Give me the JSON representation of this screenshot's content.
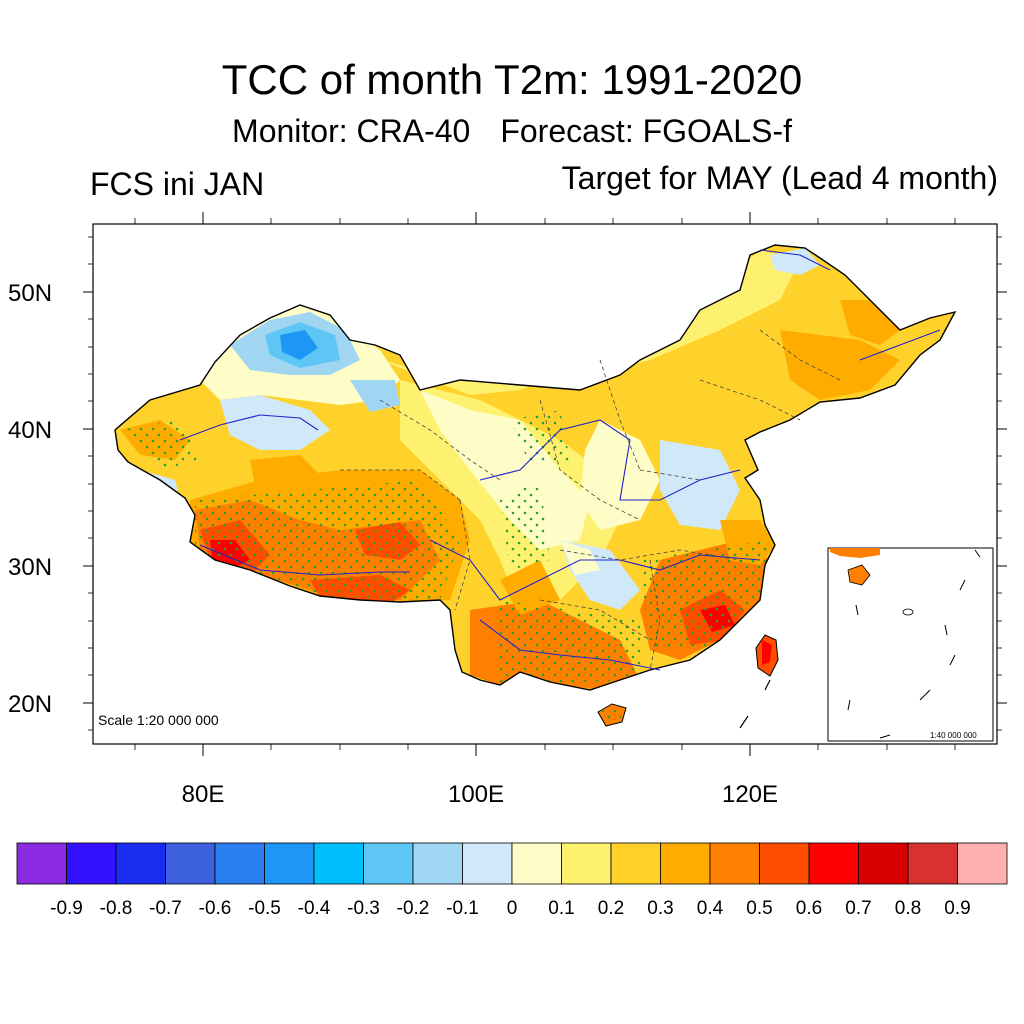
{
  "title": "TCC of month T2m: 1991-2020",
  "subtitle": {
    "monitor": "Monitor: CRA-40",
    "forecast": "Forecast: FGOALS-f"
  },
  "left_string": "FCS ini JAN",
  "right_string": "Target for MAY (Lead 4 month)",
  "map": {
    "lat_ticks": [
      "50N",
      "40N",
      "30N",
      "20N"
    ],
    "lon_ticks": [
      "80E",
      "100E",
      "120E"
    ],
    "scale_text": "Scale 1:20 000 000",
    "inset_scale_text": "1:40 000 000"
  },
  "colorbar": {
    "colors": [
      "#8a2be2",
      "#3311ff",
      "#1a2cf0",
      "#3c60de",
      "#2a7ff0",
      "#1e96f5",
      "#00bfff",
      "#5ec6f4",
      "#a0d6f2",
      "#cfe9f8",
      "#fffdc7",
      "#fff170",
      "#ffd22b",
      "#ffac00",
      "#ff8000",
      "#ff4e00",
      "#ff0000",
      "#d80000",
      "#d93030",
      "#ffb0b0"
    ],
    "labels": [
      "-0.9",
      "-0.8",
      "-0.7",
      "-0.6",
      "-0.5",
      "-0.4",
      "-0.3",
      "-0.2",
      "-0.1",
      "0",
      "0.1",
      "0.2",
      "0.3",
      "0.4",
      "0.5",
      "0.6",
      "0.7",
      "0.8",
      "0.9"
    ]
  }
}
